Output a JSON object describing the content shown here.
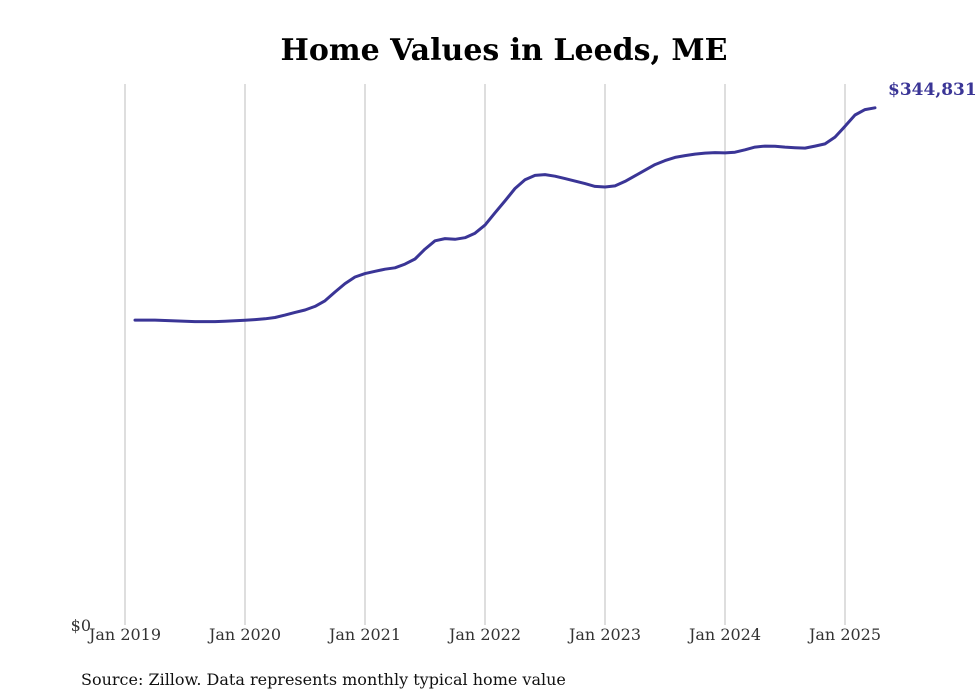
{
  "chart_data": {
    "type": "line",
    "title": "Home Values in Leeds, ME",
    "xlabel": "",
    "ylabel": "",
    "x_ticks": [
      "Jan 2019",
      "Jan 2020",
      "Jan 2021",
      "Jan 2022",
      "Jan 2023",
      "Jan 2024",
      "Jan 2025"
    ],
    "y_ticks": [
      "$0"
    ],
    "ylim": [
      0,
      360000
    ],
    "grid": "vertical",
    "series": [
      {
        "color": "#3a3596",
        "x": [
          "2019-02",
          "2019-03",
          "2019-04",
          "2019-05",
          "2019-06",
          "2019-07",
          "2019-08",
          "2019-09",
          "2019-10",
          "2019-11",
          "2019-12",
          "2020-01",
          "2020-02",
          "2020-03",
          "2020-04",
          "2020-05",
          "2020-06",
          "2020-07",
          "2020-08",
          "2020-09",
          "2020-10",
          "2020-11",
          "2020-12",
          "2021-01",
          "2021-02",
          "2021-03",
          "2021-04",
          "2021-05",
          "2021-06",
          "2021-07",
          "2021-08",
          "2021-09",
          "2021-10",
          "2021-11",
          "2021-12",
          "2022-01",
          "2022-02",
          "2022-03",
          "2022-04",
          "2022-05",
          "2022-06",
          "2022-07",
          "2022-08",
          "2022-09",
          "2022-10",
          "2022-11",
          "2022-12",
          "2023-01",
          "2023-02",
          "2023-03",
          "2023-04",
          "2023-05",
          "2023-06",
          "2023-07",
          "2023-08",
          "2023-09",
          "2023-10",
          "2023-11",
          "2023-12",
          "2024-01",
          "2024-02",
          "2024-03",
          "2024-04",
          "2024-05",
          "2024-06",
          "2024-07",
          "2024-08",
          "2024-09",
          "2024-10",
          "2024-11",
          "2024-12",
          "2025-01",
          "2025-02",
          "2025-03",
          "2025-04"
        ],
        "values": [
          203300,
          203300,
          203300,
          203000,
          202700,
          202500,
          202300,
          202300,
          202300,
          202500,
          202800,
          203200,
          203600,
          204100,
          205000,
          206600,
          208400,
          210000,
          212400,
          216100,
          222000,
          227600,
          232000,
          234300,
          235800,
          237200,
          238100,
          240600,
          244000,
          250600,
          256100,
          257600,
          257100,
          258200,
          261200,
          266600,
          274800,
          282700,
          291000,
          296800,
          299700,
          300300,
          299200,
          297600,
          295900,
          294300,
          292400,
          292000,
          292700,
          295700,
          299500,
          303200,
          306900,
          309600,
          311700,
          312900,
          313900,
          314600,
          314900,
          314700,
          315200,
          316800,
          318600,
          319300,
          319200,
          318600,
          318200,
          317900,
          319300,
          320700,
          325300,
          332500,
          340000,
          343600,
          344831
        ]
      }
    ],
    "end_label": "$344,831",
    "source": "Source: Zillow. Data represents monthly typical home value"
  }
}
